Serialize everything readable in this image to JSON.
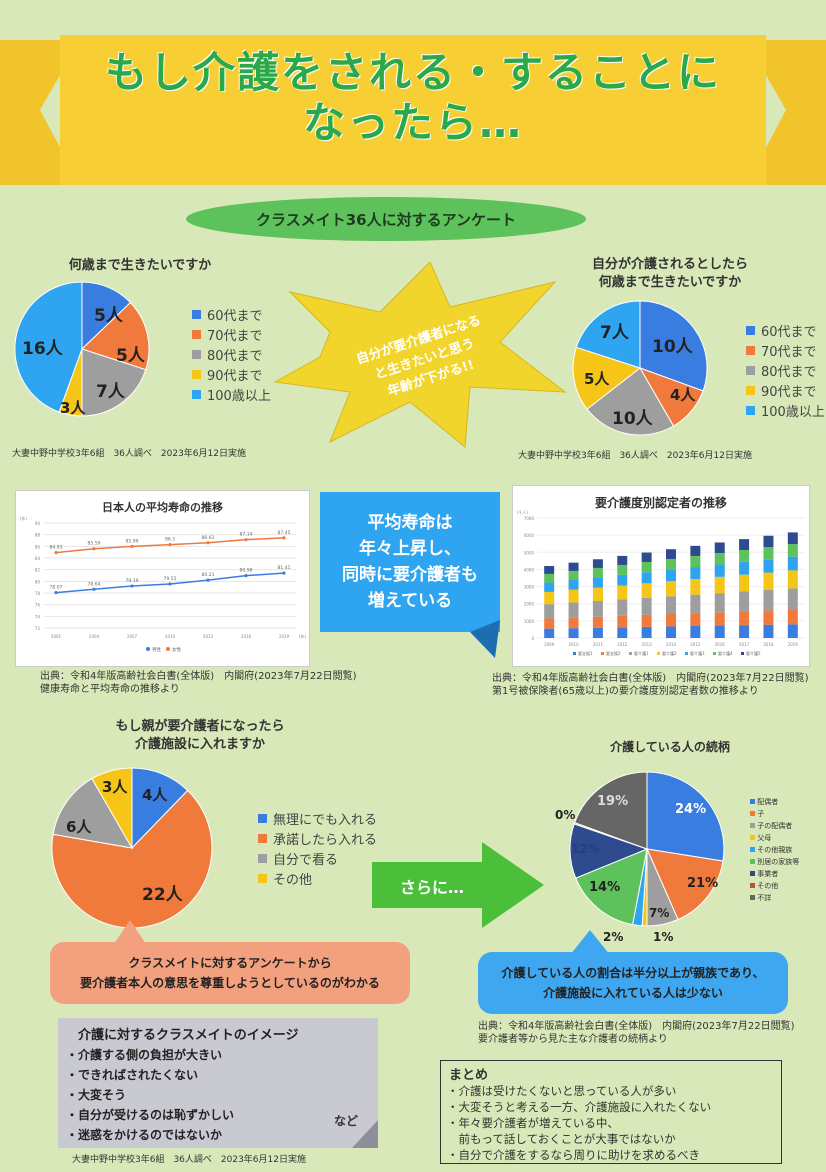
{
  "title_line1": "もし介護をされる・することに",
  "title_line2": "なったら…",
  "survey_header": "クラスメイト36人に対するアンケート",
  "q1": {
    "question": "何歳まで生きたいですか",
    "source": "大妻中野中学校3年6組　36人調べ　2023年6月12日実施",
    "legend": [
      "60代まで",
      "70代まで",
      "80代まで",
      "90代まで",
      "100歳以上"
    ],
    "labels": [
      "5人",
      "5人",
      "7人",
      "3人",
      "16人"
    ]
  },
  "q2": {
    "question_line1": "自分が介護されるとしたら",
    "question_line2": "何歳まで生きたいですか",
    "source": "大妻中野中学校3年6組　36人調べ　2023年6月12日実施",
    "legend": [
      "60代まで",
      "70代まで",
      "80代まで",
      "90代まで",
      "100歳以上"
    ],
    "labels": [
      "10人",
      "4人",
      "10人",
      "5人",
      "7人"
    ]
  },
  "burst_lines": [
    "自分が要介護者になる",
    "と生きたいと思う",
    "年齢が下がる!!"
  ],
  "life_chart": {
    "title": "日本人の平均寿命の推移",
    "years": [
      "2001",
      "2004",
      "2007",
      "2010",
      "2013",
      "2016",
      "2019"
    ],
    "male": [
      78.07,
      78.64,
      79.19,
      79.55,
      80.21,
      80.98,
      81.41
    ],
    "female": [
      84.93,
      85.59,
      85.99,
      86.3,
      86.61,
      87.14,
      87.45
    ],
    "male_labels": [
      "78.07",
      "78.64",
      "79.19",
      "79.55",
      "80.21",
      "80.98",
      "81.41"
    ],
    "female_labels": [
      "84.93",
      "85.59",
      "85.99",
      "86.3",
      "86.61",
      "87.14",
      "87.45"
    ],
    "y_ticks": [
      "90",
      "88",
      "86",
      "84",
      "82",
      "80",
      "78",
      "76",
      "74",
      "72"
    ],
    "legend": [
      "男性",
      "女性"
    ],
    "unit": "(年)",
    "ylabel": "(年)",
    "source_line1": "出典：令和4年版高齢社会白書(全体版)　内閣府(2023年7月22日閲覧)",
    "source_line2": "健康寿命と平均寿命の推移より"
  },
  "center_note": [
    "平均寿命は",
    "年々上昇し、",
    "同時に要介護者も",
    "増えている"
  ],
  "care_chart": {
    "title": "要介護度別認定者の推移",
    "ylabel": "(千人)",
    "y_ticks": [
      "7000",
      "6000",
      "5000",
      "4000",
      "3000",
      "2000",
      "1000",
      "0"
    ],
    "x_labels": [
      "2009",
      "2010",
      "2011",
      "2012",
      "2013",
      "2014",
      "2015",
      "2016",
      "2017",
      "2018",
      "2019"
    ],
    "legend": [
      "要支援1",
      "要支援2",
      "要介護1",
      "要介護2",
      "要介護3",
      "要介護4",
      "要介護5"
    ],
    "source_line1": "出典：令和4年版高齢社会白書(全体版)　内閣府(2023年7月22日閲覧)",
    "source_line2": "第1号被保険者(65歳以上)の要介護度別認定者数の推移より"
  },
  "q3": {
    "question_line1": "もし親が要介護者になったら",
    "question_line2": "介護施設に入れますか",
    "legend": [
      "無理にでも入れる",
      "承諾したら入れる",
      "自分で看る",
      "その他"
    ],
    "labels": [
      "4人",
      "22人",
      "6人",
      "3人"
    ]
  },
  "arrow_label": "さらに…",
  "q4": {
    "title": "介護している人の続柄",
    "legend": [
      "配偶者",
      "子",
      "子の配偶者",
      "父母",
      "その他親族",
      "別居の家族等",
      "事業者",
      "その他",
      "不詳"
    ],
    "labels": [
      "24%",
      "21%",
      "7%",
      "1%",
      "2%",
      "14%",
      "12%",
      "0%",
      "19%"
    ],
    "source_line1": "出典：令和4年版高齢社会白書(全体版)　内閣府(2023年7月22日閲覧)",
    "source_line2": "要介護者等から見た主な介護者の続柄より"
  },
  "note_left": [
    "クラスメイトに対するアンケートから",
    "要介護者本人の意思を尊重しようとしているのがわかる"
  ],
  "note_right": [
    "介護している人の割合は半分以上が親族であり、",
    "介護施設に入れている人は少ない"
  ],
  "image_box": {
    "title": "介護に対するクラスメイトのイメージ",
    "items": [
      "・介護する側の負担が大きい",
      "・できればされたくない",
      "・大変そう",
      "・自分が受けるのは恥ずかしい",
      "・迷惑をかけるのではないか"
    ],
    "etc": "など",
    "source": "大妻中野中学校3年6組　36人調べ　2023年6月12日実施"
  },
  "summary": {
    "title": "まとめ",
    "items": [
      "・介護は受けたくないと思っている人が多い",
      "・大変そうと考える一方、介護施設に入れたくない",
      "・年々要介護者が増えている中、",
      "　前もって話しておくことが大事ではないか",
      "・自分で介護をするなら周りに助けを求めるべき"
    ]
  },
  "colors": {
    "blue": "#3a7de0",
    "orange": "#f07a3c",
    "gray": "#9e9e9e",
    "yellow": "#f5c518",
    "lightblue": "#2fa4f0",
    "green": "#5dc25b",
    "darkblue": "#2f4b8f",
    "darkgray": "#666666"
  }
}
